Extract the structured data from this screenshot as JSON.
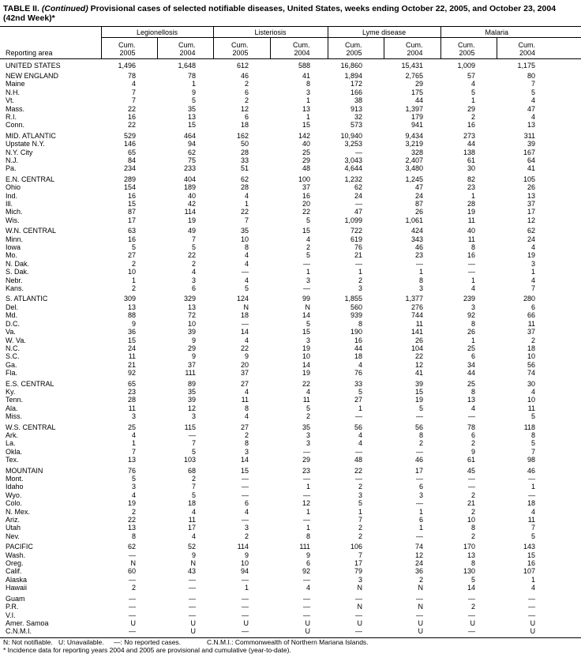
{
  "title": {
    "prefix": "TABLE II. ",
    "continued": "(Continued)",
    "text": " Provisional cases of selected notifiable diseases, United States, weeks ending October 22, 2005, and October 23, 2004 (42nd Week)*"
  },
  "header": {
    "area_label": "Reporting area",
    "groups": [
      "Legionellosis",
      "Listeriosis",
      "Lyme disease",
      "Malaria"
    ],
    "cum_label": "Cum.",
    "years": [
      "2005",
      "2004"
    ]
  },
  "sections": [
    [
      [
        "UNITED STATES",
        "1,496",
        "1,648",
        "612",
        "588",
        "16,860",
        "15,431",
        "1,009",
        "1,175"
      ]
    ],
    [
      [
        "NEW ENGLAND",
        "78",
        "78",
        "46",
        "41",
        "1,894",
        "2,765",
        "57",
        "80"
      ],
      [
        "Maine",
        "4",
        "1",
        "2",
        "8",
        "172",
        "29",
        "4",
        "7"
      ],
      [
        "N.H.",
        "7",
        "9",
        "6",
        "3",
        "166",
        "175",
        "5",
        "5"
      ],
      [
        "Vt.",
        "7",
        "5",
        "2",
        "1",
        "38",
        "44",
        "1",
        "4"
      ],
      [
        "Mass.",
        "22",
        "35",
        "12",
        "13",
        "913",
        "1,397",
        "29",
        "47"
      ],
      [
        "R.I.",
        "16",
        "13",
        "6",
        "1",
        "32",
        "179",
        "2",
        "4"
      ],
      [
        "Conn.",
        "22",
        "15",
        "18",
        "15",
        "573",
        "941",
        "16",
        "13"
      ]
    ],
    [
      [
        "MID. ATLANTIC",
        "529",
        "464",
        "162",
        "142",
        "10,940",
        "9,434",
        "273",
        "311"
      ],
      [
        "Upstate N.Y.",
        "146",
        "94",
        "50",
        "40",
        "3,253",
        "3,219",
        "44",
        "39"
      ],
      [
        "N.Y. City",
        "65",
        "62",
        "28",
        "25",
        "—",
        "328",
        "138",
        "167"
      ],
      [
        "N.J.",
        "84",
        "75",
        "33",
        "29",
        "3,043",
        "2,407",
        "61",
        "64"
      ],
      [
        "Pa.",
        "234",
        "233",
        "51",
        "48",
        "4,644",
        "3,480",
        "30",
        "41"
      ]
    ],
    [
      [
        "E.N. CENTRAL",
        "289",
        "404",
        "62",
        "100",
        "1,232",
        "1,245",
        "82",
        "105"
      ],
      [
        "Ohio",
        "154",
        "189",
        "28",
        "37",
        "62",
        "47",
        "23",
        "26"
      ],
      [
        "Ind.",
        "16",
        "40",
        "4",
        "16",
        "24",
        "24",
        "1",
        "13"
      ],
      [
        "Ill.",
        "15",
        "42",
        "1",
        "20",
        "—",
        "87",
        "28",
        "37"
      ],
      [
        "Mich.",
        "87",
        "114",
        "22",
        "22",
        "47",
        "26",
        "19",
        "17"
      ],
      [
        "Wis.",
        "17",
        "19",
        "7",
        "5",
        "1,099",
        "1,061",
        "11",
        "12"
      ]
    ],
    [
      [
        "W.N. CENTRAL",
        "63",
        "49",
        "35",
        "15",
        "722",
        "424",
        "40",
        "62"
      ],
      [
        "Minn.",
        "16",
        "7",
        "10",
        "4",
        "619",
        "343",
        "11",
        "24"
      ],
      [
        "Iowa",
        "5",
        "5",
        "8",
        "2",
        "76",
        "46",
        "8",
        "4"
      ],
      [
        "Mo.",
        "27",
        "22",
        "4",
        "5",
        "21",
        "23",
        "16",
        "19"
      ],
      [
        "N. Dak.",
        "2",
        "2",
        "4",
        "—",
        "—",
        "—",
        "—",
        "3"
      ],
      [
        "S. Dak.",
        "10",
        "4",
        "—",
        "1",
        "1",
        "1",
        "—",
        "1"
      ],
      [
        "Nebr.",
        "1",
        "3",
        "4",
        "3",
        "2",
        "8",
        "1",
        "4"
      ],
      [
        "Kans.",
        "2",
        "6",
        "5",
        "—",
        "3",
        "3",
        "4",
        "7"
      ]
    ],
    [
      [
        "S. ATLANTIC",
        "309",
        "329",
        "124",
        "99",
        "1,855",
        "1,377",
        "239",
        "280"
      ],
      [
        "Del.",
        "13",
        "13",
        "N",
        "N",
        "560",
        "276",
        "3",
        "6"
      ],
      [
        "Md.",
        "88",
        "72",
        "18",
        "14",
        "939",
        "744",
        "92",
        "66"
      ],
      [
        "D.C.",
        "9",
        "10",
        "—",
        "5",
        "8",
        "11",
        "8",
        "11"
      ],
      [
        "Va.",
        "36",
        "39",
        "14",
        "15",
        "190",
        "141",
        "26",
        "37"
      ],
      [
        "W. Va.",
        "15",
        "9",
        "4",
        "3",
        "16",
        "26",
        "1",
        "2"
      ],
      [
        "N.C.",
        "24",
        "29",
        "22",
        "19",
        "44",
        "104",
        "25",
        "18"
      ],
      [
        "S.C.",
        "11",
        "9",
        "9",
        "10",
        "18",
        "22",
        "6",
        "10"
      ],
      [
        "Ga.",
        "21",
        "37",
        "20",
        "14",
        "4",
        "12",
        "34",
        "56"
      ],
      [
        "Fla.",
        "92",
        "111",
        "37",
        "19",
        "76",
        "41",
        "44",
        "74"
      ]
    ],
    [
      [
        "E.S. CENTRAL",
        "65",
        "89",
        "27",
        "22",
        "33",
        "39",
        "25",
        "30"
      ],
      [
        "Ky.",
        "23",
        "35",
        "4",
        "4",
        "5",
        "15",
        "8",
        "4"
      ],
      [
        "Tenn.",
        "28",
        "39",
        "11",
        "11",
        "27",
        "19",
        "13",
        "10"
      ],
      [
        "Ala.",
        "11",
        "12",
        "8",
        "5",
        "1",
        "5",
        "4",
        "11"
      ],
      [
        "Miss.",
        "3",
        "3",
        "4",
        "2",
        "—",
        "—",
        "—",
        "5"
      ]
    ],
    [
      [
        "W.S. CENTRAL",
        "25",
        "115",
        "27",
        "35",
        "56",
        "56",
        "78",
        "118"
      ],
      [
        "Ark.",
        "4",
        "—",
        "2",
        "3",
        "4",
        "8",
        "6",
        "8"
      ],
      [
        "La.",
        "1",
        "7",
        "8",
        "3",
        "4",
        "2",
        "2",
        "5"
      ],
      [
        "Okla.",
        "7",
        "5",
        "3",
        "—",
        "—",
        "—",
        "9",
        "7"
      ],
      [
        "Tex.",
        "13",
        "103",
        "14",
        "29",
        "48",
        "46",
        "61",
        "98"
      ]
    ],
    [
      [
        "MOUNTAIN",
        "76",
        "68",
        "15",
        "23",
        "22",
        "17",
        "45",
        "46"
      ],
      [
        "Mont.",
        "5",
        "2",
        "—",
        "—",
        "—",
        "—",
        "—",
        "—"
      ],
      [
        "Idaho",
        "3",
        "7",
        "—",
        "1",
        "2",
        "6",
        "—",
        "1"
      ],
      [
        "Wyo.",
        "4",
        "5",
        "—",
        "—",
        "3",
        "3",
        "2",
        "—"
      ],
      [
        "Colo.",
        "19",
        "18",
        "6",
        "12",
        "5",
        "—",
        "21",
        "18"
      ],
      [
        "N. Mex.",
        "2",
        "4",
        "4",
        "1",
        "1",
        "1",
        "2",
        "4"
      ],
      [
        "Ariz.",
        "22",
        "11",
        "—",
        "—",
        "7",
        "6",
        "10",
        "11"
      ],
      [
        "Utah",
        "13",
        "17",
        "3",
        "1",
        "2",
        "1",
        "8",
        "7"
      ],
      [
        "Nev.",
        "8",
        "4",
        "2",
        "8",
        "2",
        "—",
        "2",
        "5"
      ]
    ],
    [
      [
        "PACIFIC",
        "62",
        "52",
        "114",
        "111",
        "106",
        "74",
        "170",
        "143"
      ],
      [
        "Wash.",
        "—",
        "9",
        "9",
        "9",
        "7",
        "12",
        "13",
        "15"
      ],
      [
        "Oreg.",
        "N",
        "N",
        "10",
        "6",
        "17",
        "24",
        "8",
        "16"
      ],
      [
        "Calif.",
        "60",
        "43",
        "94",
        "92",
        "79",
        "36",
        "130",
        "107"
      ],
      [
        "Alaska",
        "—",
        "—",
        "—",
        "—",
        "3",
        "2",
        "5",
        "1"
      ],
      [
        "Hawaii",
        "2",
        "—",
        "1",
        "4",
        "N",
        "N",
        "14",
        "4"
      ]
    ],
    [
      [
        "Guam",
        "—",
        "—",
        "—",
        "—",
        "—",
        "—",
        "—",
        "—"
      ],
      [
        "P.R.",
        "—",
        "—",
        "—",
        "—",
        "N",
        "N",
        "2",
        "—"
      ],
      [
        "V.I.",
        "—",
        "—",
        "—",
        "—",
        "—",
        "—",
        "—",
        "—"
      ],
      [
        "Amer. Samoa",
        "U",
        "U",
        "U",
        "U",
        "U",
        "U",
        "U",
        "U"
      ],
      [
        "C.N.M.I.",
        "—",
        "U",
        "—",
        "U",
        "—",
        "U",
        "—",
        "U"
      ]
    ]
  ],
  "footer": {
    "legend": [
      "N: Not notifiable.",
      "U: Unavailable.",
      "—: No reported cases.",
      "C.N.M.I.: Commonwealth of Northern Mariana Islands."
    ],
    "note": "* Incidence data for reporting years 2004 and 2005 are provisional and cumulative (year-to-date)."
  }
}
